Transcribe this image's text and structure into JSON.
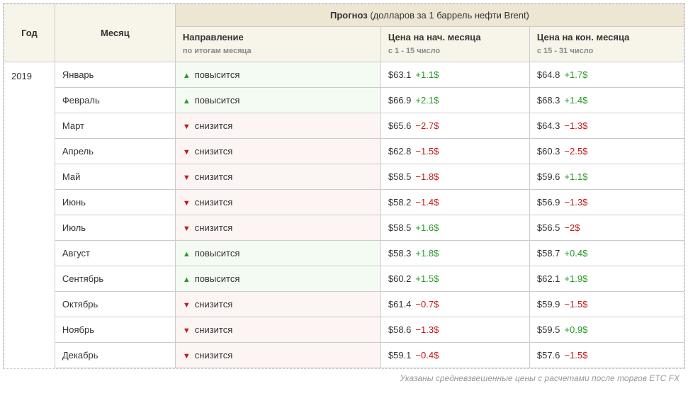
{
  "headers": {
    "year": "Год",
    "month": "Месяц",
    "forecast_label": "Прогноз",
    "forecast_unit": "(долларов за 1 баррель нефти Brent)",
    "direction_main": "Направление",
    "direction_sub": "по итогам месяца",
    "start_main": "Цена на нач. месяца",
    "start_sub": "с 1 - 15 число",
    "end_main": "Цена на кон. месяца",
    "end_sub": "с 15 - 31 число"
  },
  "year": "2019",
  "direction_labels": {
    "up": "повысится",
    "down": "снизится"
  },
  "colors": {
    "up": "#279a27",
    "down": "#c51818",
    "bg_up": "#f3fbf3",
    "bg_down": "#fdf4f4",
    "header_dark": "#ece6d3",
    "header_light": "#f7f4ea"
  },
  "rows": [
    {
      "month": "Январь",
      "dir": "up",
      "start_price": "$63.1",
      "start_delta": "+1.1$",
      "start_sign": "pos",
      "end_price": "$64.8",
      "end_delta": "+1.7$",
      "end_sign": "pos"
    },
    {
      "month": "Февраль",
      "dir": "up",
      "start_price": "$66.9",
      "start_delta": "+2.1$",
      "start_sign": "pos",
      "end_price": "$68.3",
      "end_delta": "+1.4$",
      "end_sign": "pos"
    },
    {
      "month": "Март",
      "dir": "down",
      "start_price": "$65.6",
      "start_delta": "−2.7$",
      "start_sign": "neg",
      "end_price": "$64.3",
      "end_delta": "−1.3$",
      "end_sign": "neg"
    },
    {
      "month": "Апрель",
      "dir": "down",
      "start_price": "$62.8",
      "start_delta": "−1.5$",
      "start_sign": "neg",
      "end_price": "$60.3",
      "end_delta": "−2.5$",
      "end_sign": "neg"
    },
    {
      "month": "Май",
      "dir": "down",
      "start_price": "$58.5",
      "start_delta": "−1.8$",
      "start_sign": "neg",
      "end_price": "$59.6",
      "end_delta": "+1.1$",
      "end_sign": "pos"
    },
    {
      "month": "Июнь",
      "dir": "down",
      "start_price": "$58.2",
      "start_delta": "−1.4$",
      "start_sign": "neg",
      "end_price": "$56.9",
      "end_delta": "−1.3$",
      "end_sign": "neg"
    },
    {
      "month": "Июль",
      "dir": "down",
      "start_price": "$58.5",
      "start_delta": "+1.6$",
      "start_sign": "pos",
      "end_price": "$56.5",
      "end_delta": "−2$",
      "end_sign": "neg"
    },
    {
      "month": "Август",
      "dir": "up",
      "start_price": "$58.3",
      "start_delta": "+1.8$",
      "start_sign": "pos",
      "end_price": "$58.7",
      "end_delta": "+0.4$",
      "end_sign": "pos"
    },
    {
      "month": "Сентябрь",
      "dir": "up",
      "start_price": "$60.2",
      "start_delta": "+1.5$",
      "start_sign": "pos",
      "end_price": "$62.1",
      "end_delta": "+1.9$",
      "end_sign": "pos"
    },
    {
      "month": "Октябрь",
      "dir": "down",
      "start_price": "$61.4",
      "start_delta": "−0.7$",
      "start_sign": "neg",
      "end_price": "$59.9",
      "end_delta": "−1.5$",
      "end_sign": "neg"
    },
    {
      "month": "Ноябрь",
      "dir": "down",
      "start_price": "$58.6",
      "start_delta": "−1.3$",
      "start_sign": "neg",
      "end_price": "$59.5",
      "end_delta": "+0.9$",
      "end_sign": "pos"
    },
    {
      "month": "Декабрь",
      "dir": "down",
      "start_price": "$59.1",
      "start_delta": "−0.4$",
      "start_sign": "neg",
      "end_price": "$57.6",
      "end_delta": "−1.5$",
      "end_sign": "neg"
    }
  ],
  "footnote": "Указаны средневзвешенные цены с расчетами после торгов ETC FX"
}
